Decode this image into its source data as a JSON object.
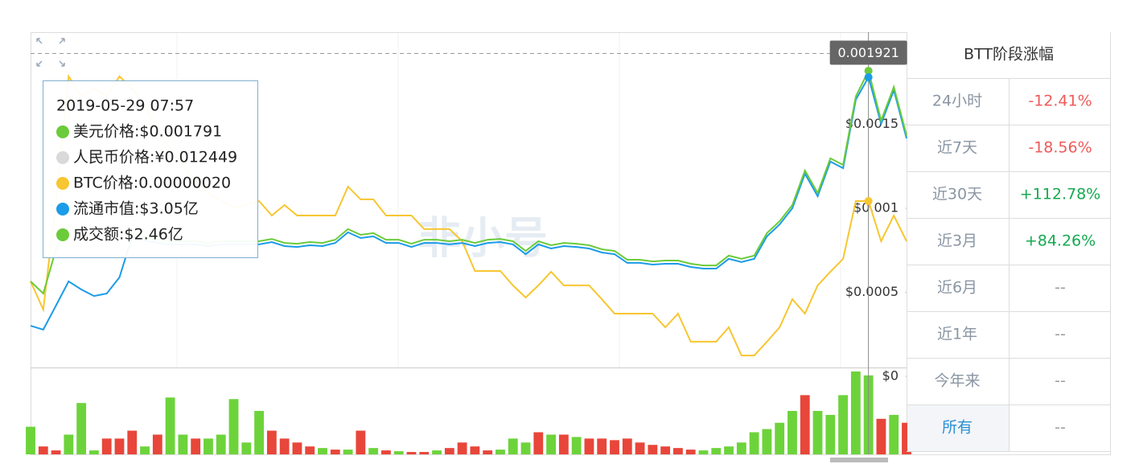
{
  "chart_data": {
    "type": "line",
    "ylim": [
      0,
      0.002048
    ],
    "yticks": [
      {
        "value": 0,
        "label": "$0"
      },
      {
        "value": 0.0005,
        "label": "$0.0005"
      },
      {
        "value": 0.001,
        "label": "$0.001"
      },
      {
        "value": 0.0015,
        "label": "$0.0015"
      }
    ],
    "crosshair": {
      "index": 66,
      "value": 0.001921,
      "label": "0.001921"
    },
    "watermark": "非小号",
    "series": [
      {
        "color": "#6bcb3a",
        "values": [
          0.000565,
          0.000493,
          0.000756,
          0.0009,
          0.000852,
          0.000828,
          0.000852,
          0.000876,
          0.000852,
          0.000828,
          0.000813,
          0.000804,
          0.000804,
          0.000804,
          0.000794,
          0.000804,
          0.000804,
          0.000804,
          0.000804,
          0.000818,
          0.000794,
          0.000789,
          0.000799,
          0.000794,
          0.000813,
          0.000876,
          0.000842,
          0.000852,
          0.000813,
          0.000813,
          0.000789,
          0.000813,
          0.000813,
          0.000804,
          0.000813,
          0.000794,
          0.000813,
          0.000818,
          0.000804,
          0.000746,
          0.000804,
          0.00078,
          0.000794,
          0.000789,
          0.00078,
          0.000756,
          0.000746,
          0.000694,
          0.000694,
          0.000684,
          0.000689,
          0.000689,
          0.00067,
          0.00066,
          0.00066,
          0.000718,
          0.000699,
          0.000718,
          0.000852,
          0.000923,
          0.001019,
          0.001225,
          0.001091,
          0.001297,
          0.001258,
          0.001665,
          0.001818,
          0.001522,
          0.001722,
          0.001435
        ]
      },
      {
        "color": "#1b9ce8",
        "values": [
          0.000301,
          0.000278,
          0.000421,
          0.000565,
          0.000517,
          0.000478,
          0.000493,
          0.000589,
          0.000833,
          0.000809,
          0.000794,
          0.000785,
          0.000785,
          0.000785,
          0.000775,
          0.000785,
          0.000785,
          0.000785,
          0.000785,
          0.000799,
          0.000775,
          0.00077,
          0.00078,
          0.000775,
          0.000794,
          0.000857,
          0.000823,
          0.000833,
          0.000794,
          0.000794,
          0.00077,
          0.000794,
          0.000794,
          0.000785,
          0.000794,
          0.000775,
          0.000794,
          0.000799,
          0.000785,
          0.000727,
          0.000785,
          0.000761,
          0.000775,
          0.00077,
          0.000761,
          0.000737,
          0.000727,
          0.000675,
          0.000675,
          0.000665,
          0.00067,
          0.00067,
          0.000651,
          0.000641,
          0.000641,
          0.000699,
          0.00068,
          0.000699,
          0.000833,
          0.000904,
          0.001,
          0.001206,
          0.001072,
          0.001278,
          0.001239,
          0.001646,
          0.00178,
          0.001503,
          0.001703,
          0.001416
        ]
      },
      {
        "color": "#f7c630",
        "values": [
          0.000565,
          0.000397,
          0.001043,
          0.001785,
          0.001665,
          0.001713,
          0.001665,
          0.001785,
          0.001713,
          0.001617,
          0.001474,
          0.001354,
          0.001258,
          0.001163,
          0.001091,
          0.001043,
          0.001005,
          0.001019,
          0.001043,
          0.000957,
          0.001019,
          0.000957,
          0.000957,
          0.000957,
          0.000957,
          0.001129,
          0.001053,
          0.001053,
          0.000957,
          0.000957,
          0.000957,
          0.000876,
          0.000876,
          0.000876,
          0.000804,
          0.000627,
          0.000627,
          0.000627,
          0.000541,
          0.000469,
          0.000541,
          0.000622,
          0.000541,
          0.000541,
          0.000541,
          0.000459,
          0.000373,
          0.000373,
          0.000373,
          0.000373,
          0.000292,
          0.000373,
          0.000206,
          0.000206,
          0.000206,
          0.000292,
          0.000124,
          0.000124,
          0.000206,
          0.000292,
          0.000459,
          0.000373,
          0.000541,
          0.000622,
          0.000699,
          0.001043,
          0.001043,
          0.000804,
          0.000957,
          0.000804
        ]
      }
    ],
    "volume": {
      "ylim": [
        0,
        110
      ],
      "colors": {
        "up": "#6dd33b",
        "down": "#e8463a"
      },
      "values": [
        35,
        10,
        5,
        25,
        65,
        5,
        20,
        20,
        30,
        10,
        25,
        72,
        25,
        20,
        20,
        25,
        70,
        15,
        55,
        30,
        20,
        15,
        10,
        8,
        6,
        6,
        30,
        8,
        5,
        4,
        3,
        3,
        5,
        8,
        15,
        10,
        5,
        6,
        20,
        15,
        28,
        25,
        25,
        22,
        20,
        20,
        18,
        20,
        15,
        12,
        10,
        8,
        6,
        5,
        8,
        10,
        15,
        28,
        32,
        40,
        55,
        75,
        55,
        50,
        75,
        105,
        100,
        45,
        50,
        40
      ],
      "directions": [
        "up",
        "down",
        "down",
        "up",
        "up",
        "up",
        "down",
        "down",
        "down",
        "up",
        "down",
        "up",
        "up",
        "down",
        "up",
        "up",
        "up",
        "up",
        "up",
        "down",
        "down",
        "down",
        "down",
        "up",
        "down",
        "up",
        "down",
        "up",
        "down",
        "up",
        "down",
        "down",
        "up",
        "down",
        "down",
        "down",
        "down",
        "up",
        "up",
        "up",
        "down",
        "up",
        "down",
        "up",
        "down",
        "down",
        "down",
        "down",
        "down",
        "down",
        "down",
        "down",
        "down",
        "up",
        "up",
        "up",
        "up",
        "up",
        "up",
        "up",
        "up",
        "down",
        "up",
        "up",
        "up",
        "up",
        "up",
        "down",
        "up",
        "down"
      ]
    }
  },
  "tooltip": {
    "date": "2019-05-29 07:57",
    "items": [
      {
        "color": "#6bcb3a",
        "text": "美元价格:$0.001791"
      },
      {
        "color": "#d9d9d9",
        "text": "人民币价格:¥0.012449"
      },
      {
        "color": "#f7c630",
        "text": "BTC价格:0.00000020"
      },
      {
        "color": "#1b9ce8",
        "text": "流通市值:$3.05亿"
      },
      {
        "color": "#6bcb3a",
        "text": "成交额:$2.46亿"
      }
    ]
  },
  "table": {
    "title": "BTT阶段涨幅",
    "rows": [
      {
        "label": "24小时",
        "value": "-12.41%",
        "color": "#f05a5a"
      },
      {
        "label": "近7天",
        "value": "-18.56%",
        "color": "#f05a5a"
      },
      {
        "label": "近30天",
        "value": "+112.78%",
        "color": "#16a951"
      },
      {
        "label": "近3月",
        "value": "+84.26%",
        "color": "#16a951"
      },
      {
        "label": "近6月",
        "value": "--",
        "color": "#999999"
      },
      {
        "label": "近1年",
        "value": "--",
        "color": "#999999"
      },
      {
        "label": "今年来",
        "value": "--",
        "color": "#999999"
      },
      {
        "label": "所有",
        "value": "--",
        "color": "#999999"
      }
    ]
  }
}
